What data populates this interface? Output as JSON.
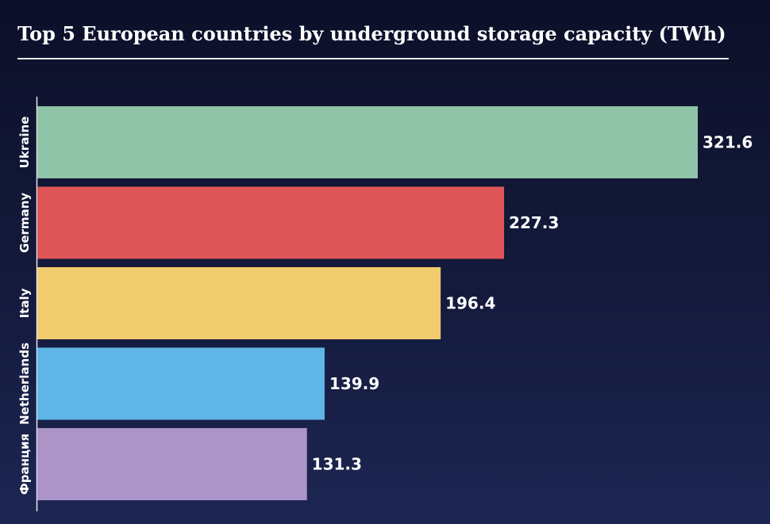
{
  "chart_data": {
    "type": "bar",
    "orientation": "horizontal",
    "title": "Top 5 European countries by underground storage capacity (TWh)",
    "categories": [
      "Ukraine",
      "Germany",
      "Italy",
      "Netherlands",
      "Франция"
    ],
    "values": [
      321.6,
      227.3,
      196.4,
      139.9,
      131.3
    ],
    "value_labels": [
      "321.6",
      "227.3",
      "196.4",
      "139.9",
      "131.3"
    ],
    "colors": [
      "#8fc4a9",
      "#dd5557",
      "#f0cc6e",
      "#5fb6e6",
      "#ac94c9"
    ],
    "xlim": [
      0,
      321.6
    ],
    "grid": false,
    "legend": "none"
  }
}
